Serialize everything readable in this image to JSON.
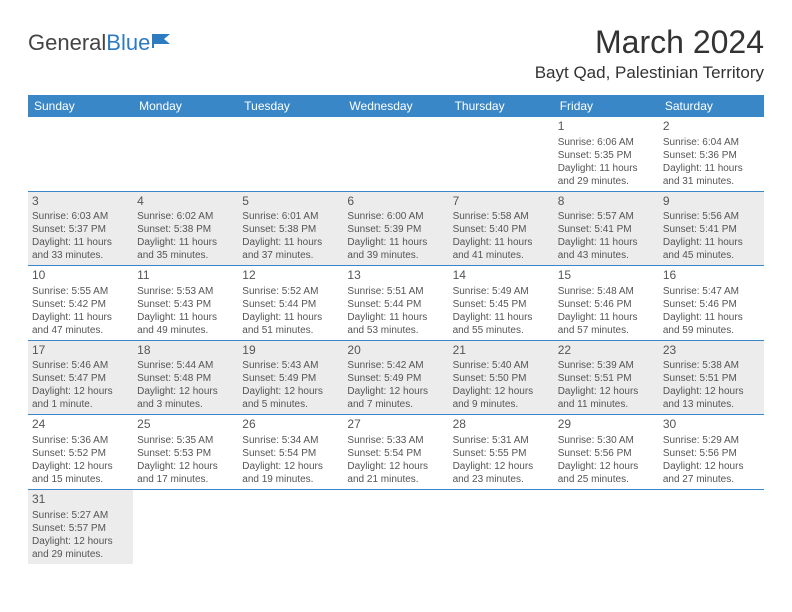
{
  "logo": {
    "text1": "General",
    "text2": "Blue"
  },
  "title": "March 2024",
  "location": "Bayt Qad, Palestinian Territory",
  "colors": {
    "header_bg": "#3a87c7",
    "header_fg": "#ffffff",
    "shaded_bg": "#ececec",
    "border": "#3a87c7",
    "text": "#555555"
  },
  "daysOfWeek": [
    "Sunday",
    "Monday",
    "Tuesday",
    "Wednesday",
    "Thursday",
    "Friday",
    "Saturday"
  ],
  "weeks": [
    [
      null,
      null,
      null,
      null,
      null,
      {
        "n": "1",
        "sr": "6:06 AM",
        "ss": "5:35 PM",
        "dl": "11 hours and 29 minutes."
      },
      {
        "n": "2",
        "sr": "6:04 AM",
        "ss": "5:36 PM",
        "dl": "11 hours and 31 minutes."
      }
    ],
    [
      {
        "n": "3",
        "sr": "6:03 AM",
        "ss": "5:37 PM",
        "dl": "11 hours and 33 minutes."
      },
      {
        "n": "4",
        "sr": "6:02 AM",
        "ss": "5:38 PM",
        "dl": "11 hours and 35 minutes."
      },
      {
        "n": "5",
        "sr": "6:01 AM",
        "ss": "5:38 PM",
        "dl": "11 hours and 37 minutes."
      },
      {
        "n": "6",
        "sr": "6:00 AM",
        "ss": "5:39 PM",
        "dl": "11 hours and 39 minutes."
      },
      {
        "n": "7",
        "sr": "5:58 AM",
        "ss": "5:40 PM",
        "dl": "11 hours and 41 minutes."
      },
      {
        "n": "8",
        "sr": "5:57 AM",
        "ss": "5:41 PM",
        "dl": "11 hours and 43 minutes."
      },
      {
        "n": "9",
        "sr": "5:56 AM",
        "ss": "5:41 PM",
        "dl": "11 hours and 45 minutes."
      }
    ],
    [
      {
        "n": "10",
        "sr": "5:55 AM",
        "ss": "5:42 PM",
        "dl": "11 hours and 47 minutes."
      },
      {
        "n": "11",
        "sr": "5:53 AM",
        "ss": "5:43 PM",
        "dl": "11 hours and 49 minutes."
      },
      {
        "n": "12",
        "sr": "5:52 AM",
        "ss": "5:44 PM",
        "dl": "11 hours and 51 minutes."
      },
      {
        "n": "13",
        "sr": "5:51 AM",
        "ss": "5:44 PM",
        "dl": "11 hours and 53 minutes."
      },
      {
        "n": "14",
        "sr": "5:49 AM",
        "ss": "5:45 PM",
        "dl": "11 hours and 55 minutes."
      },
      {
        "n": "15",
        "sr": "5:48 AM",
        "ss": "5:46 PM",
        "dl": "11 hours and 57 minutes."
      },
      {
        "n": "16",
        "sr": "5:47 AM",
        "ss": "5:46 PM",
        "dl": "11 hours and 59 minutes."
      }
    ],
    [
      {
        "n": "17",
        "sr": "5:46 AM",
        "ss": "5:47 PM",
        "dl": "12 hours and 1 minute."
      },
      {
        "n": "18",
        "sr": "5:44 AM",
        "ss": "5:48 PM",
        "dl": "12 hours and 3 minutes."
      },
      {
        "n": "19",
        "sr": "5:43 AM",
        "ss": "5:49 PM",
        "dl": "12 hours and 5 minutes."
      },
      {
        "n": "20",
        "sr": "5:42 AM",
        "ss": "5:49 PM",
        "dl": "12 hours and 7 minutes."
      },
      {
        "n": "21",
        "sr": "5:40 AM",
        "ss": "5:50 PM",
        "dl": "12 hours and 9 minutes."
      },
      {
        "n": "22",
        "sr": "5:39 AM",
        "ss": "5:51 PM",
        "dl": "12 hours and 11 minutes."
      },
      {
        "n": "23",
        "sr": "5:38 AM",
        "ss": "5:51 PM",
        "dl": "12 hours and 13 minutes."
      }
    ],
    [
      {
        "n": "24",
        "sr": "5:36 AM",
        "ss": "5:52 PM",
        "dl": "12 hours and 15 minutes."
      },
      {
        "n": "25",
        "sr": "5:35 AM",
        "ss": "5:53 PM",
        "dl": "12 hours and 17 minutes."
      },
      {
        "n": "26",
        "sr": "5:34 AM",
        "ss": "5:54 PM",
        "dl": "12 hours and 19 minutes."
      },
      {
        "n": "27",
        "sr": "5:33 AM",
        "ss": "5:54 PM",
        "dl": "12 hours and 21 minutes."
      },
      {
        "n": "28",
        "sr": "5:31 AM",
        "ss": "5:55 PM",
        "dl": "12 hours and 23 minutes."
      },
      {
        "n": "29",
        "sr": "5:30 AM",
        "ss": "5:56 PM",
        "dl": "12 hours and 25 minutes."
      },
      {
        "n": "30",
        "sr": "5:29 AM",
        "ss": "5:56 PM",
        "dl": "12 hours and 27 minutes."
      }
    ],
    [
      {
        "n": "31",
        "sr": "5:27 AM",
        "ss": "5:57 PM",
        "dl": "12 hours and 29 minutes."
      },
      null,
      null,
      null,
      null,
      null,
      null
    ]
  ],
  "labels": {
    "sunrise": "Sunrise: ",
    "sunset": "Sunset: ",
    "daylight": "Daylight: "
  }
}
